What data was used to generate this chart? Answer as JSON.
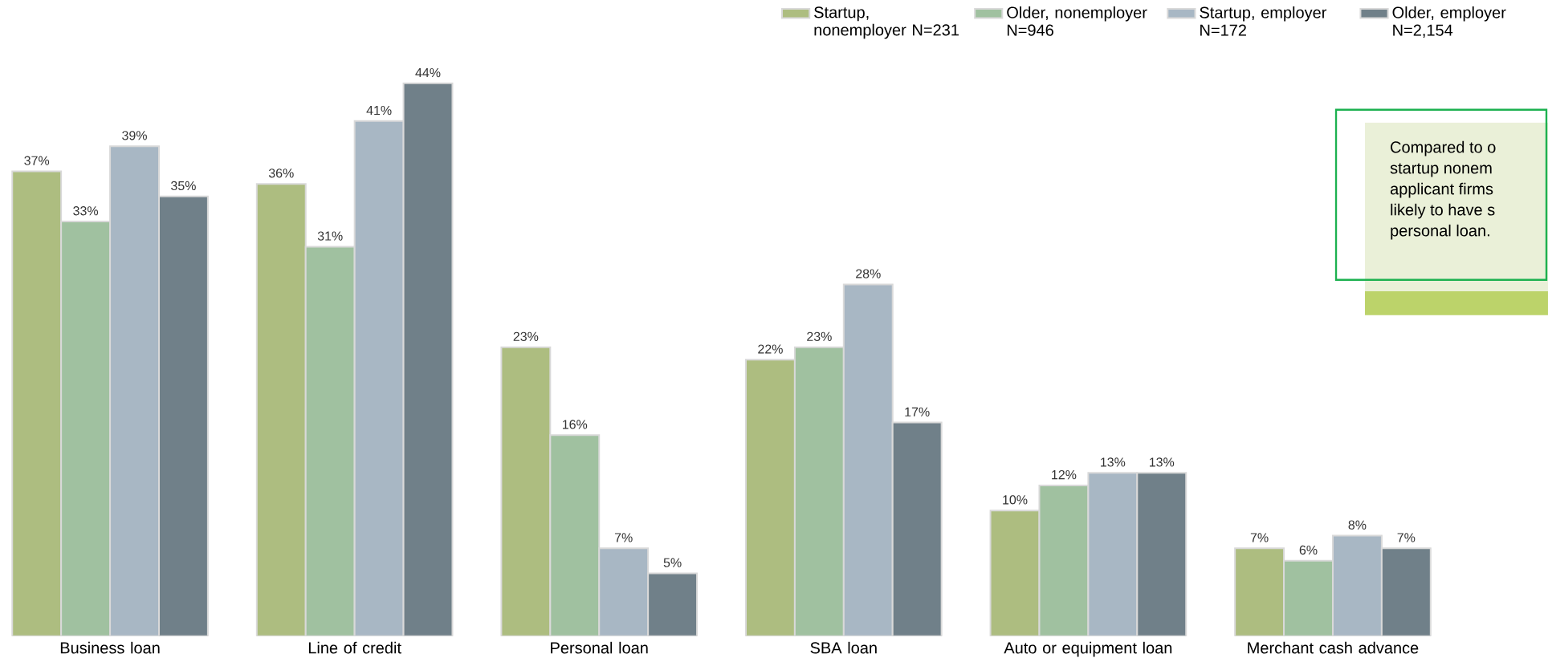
{
  "chart_data": {
    "type": "bar",
    "categories": [
      "Business loan",
      "Line of credit",
      "Personal loan",
      "SBA loan",
      "Auto or equipment loan",
      "Merchant cash advance"
    ],
    "series": [
      {
        "name": "Startup, nonemployer N=231",
        "color": "#adbd80",
        "values": [
          37,
          36,
          23,
          22,
          10,
          7
        ],
        "value_labels": [
          "37%",
          "36%",
          "23%",
          "22%",
          "10%",
          "7%"
        ]
      },
      {
        "name": "Older, nonemployer N=946",
        "color": "#a0c1a0",
        "values": [
          33,
          31,
          16,
          23,
          12,
          6
        ],
        "value_labels": [
          "33%",
          "31%",
          "16%",
          "23%",
          "12%",
          "6%"
        ]
      },
      {
        "name": "Startup, employer N=172",
        "color": "#a8b7c4",
        "values": [
          39,
          41,
          7,
          28,
          13,
          8
        ],
        "value_labels": [
          "39%",
          "41%",
          "7%",
          "28%",
          "13%",
          "8%"
        ]
      },
      {
        "name": "Older, employer N=2,154",
        "color": "#708089",
        "values": [
          35,
          44,
          5,
          17,
          13,
          7
        ],
        "value_labels": [
          "35%",
          "44%",
          "5%",
          "17%",
          "13%",
          "7%"
        ]
      }
    ],
    "legend": "top right",
    "annotations": [
      "Compared to o",
      "startup nonem",
      "applicant firms",
      "likely to have s",
      "personal loan."
    ]
  }
}
